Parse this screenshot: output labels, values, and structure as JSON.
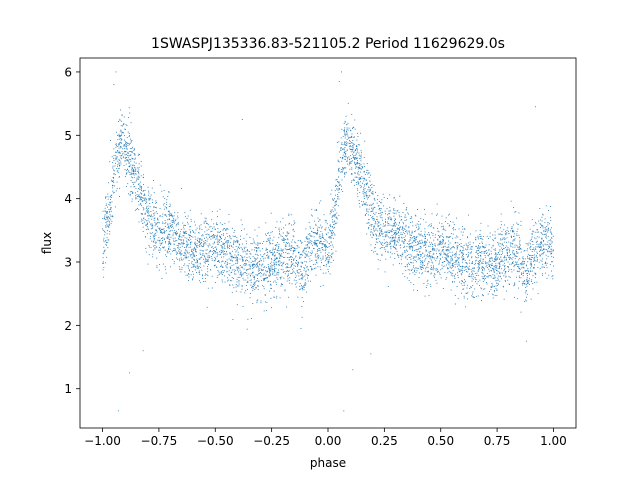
{
  "chart_data": {
    "type": "scatter",
    "title": "1SWASPJ135336.83-521105.2 Period 11629629.0s",
    "xlabel": "phase",
    "ylabel": "flux",
    "xlim": [
      -1.1,
      1.1
    ],
    "ylim": [
      0.38,
      6.22
    ],
    "x_ticks": [
      -1.0,
      -0.75,
      -0.5,
      -0.25,
      0.0,
      0.25,
      0.5,
      0.75,
      1.0
    ],
    "x_tick_labels": [
      "−1.00",
      "−0.75",
      "−0.50",
      "−0.25",
      "0.00",
      "0.25",
      "0.50",
      "0.75",
      "1.00"
    ],
    "y_ticks": [
      1,
      2,
      3,
      4,
      5,
      6
    ],
    "y_tick_labels": [
      "1",
      "2",
      "3",
      "4",
      "5",
      "6"
    ],
    "grid": false,
    "legend": "none",
    "marker_color": "#1f77b4",
    "phase_profile": [
      {
        "phase": 0.0,
        "flux": 3.2
      },
      {
        "phase": 0.03,
        "flux": 3.8
      },
      {
        "phase": 0.06,
        "flux": 4.6
      },
      {
        "phase": 0.09,
        "flux": 4.9
      },
      {
        "phase": 0.12,
        "flux": 4.6
      },
      {
        "phase": 0.16,
        "flux": 4.2
      },
      {
        "phase": 0.2,
        "flux": 3.7
      },
      {
        "phase": 0.25,
        "flux": 3.45
      },
      {
        "phase": 0.3,
        "flux": 3.5
      },
      {
        "phase": 0.35,
        "flux": 3.3
      },
      {
        "phase": 0.4,
        "flux": 3.15
      },
      {
        "phase": 0.45,
        "flux": 3.2
      },
      {
        "phase": 0.5,
        "flux": 3.25
      },
      {
        "phase": 0.55,
        "flux": 3.15
      },
      {
        "phase": 0.6,
        "flux": 3.0
      },
      {
        "phase": 0.65,
        "flux": 2.95
      },
      {
        "phase": 0.7,
        "flux": 2.95
      },
      {
        "phase": 0.75,
        "flux": 2.95
      },
      {
        "phase": 0.8,
        "flux": 3.1
      },
      {
        "phase": 0.85,
        "flux": 3.15
      },
      {
        "phase": 0.88,
        "flux": 2.8
      },
      {
        "phase": 0.92,
        "flux": 3.2
      },
      {
        "phase": 0.96,
        "flux": 3.35
      },
      {
        "phase": 1.0,
        "flux": 3.2
      }
    ],
    "outliers": [
      {
        "phase": -0.94,
        "flux": 6.0
      },
      {
        "phase": 0.06,
        "flux": 6.0
      },
      {
        "phase": -0.95,
        "flux": 5.8
      },
      {
        "phase": 0.05,
        "flux": 5.85
      },
      {
        "phase": -0.92,
        "flux": 5.4
      },
      {
        "phase": 0.08,
        "flux": 5.3
      },
      {
        "phase": -0.93,
        "flux": 0.65
      },
      {
        "phase": 0.07,
        "flux": 0.65
      },
      {
        "phase": -0.88,
        "flux": 1.25
      },
      {
        "phase": 0.11,
        "flux": 1.3
      },
      {
        "phase": 0.92,
        "flux": 5.45
      },
      {
        "phase": -0.38,
        "flux": 5.25
      },
      {
        "phase": -0.82,
        "flux": 1.6
      },
      {
        "phase": 0.19,
        "flux": 1.55
      },
      {
        "phase": -0.12,
        "flux": 1.95
      },
      {
        "phase": 0.88,
        "flux": 1.75
      }
    ]
  }
}
